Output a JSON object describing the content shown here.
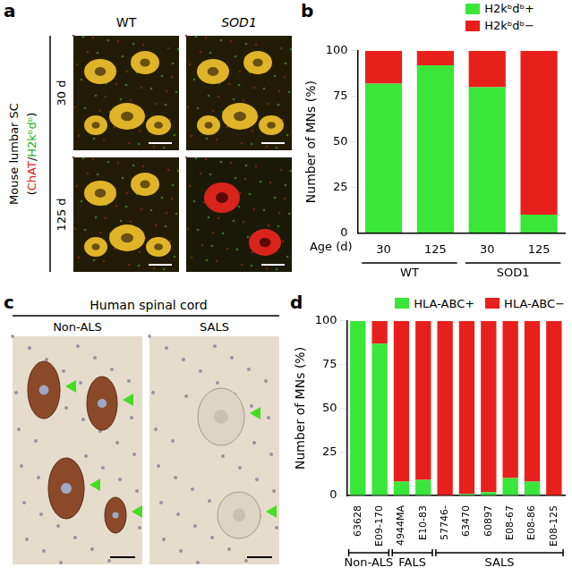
{
  "panel_a": {
    "panel_label": "a",
    "column_headers": [
      "WT",
      "SOD1"
    ],
    "row_headers": [
      "30 d",
      "125 d"
    ],
    "side_label": "Mouse lumbar SC",
    "stain_label_parts": [
      {
        "text": "(",
        "color": "#000000"
      },
      {
        "text": "ChAT",
        "color": "#e8201c"
      },
      {
        "text": "/",
        "color": "#000000"
      },
      {
        "text": "H2kᵇdᵇ",
        "color": "#22b022"
      },
      {
        "text": ")",
        "color": "#000000"
      }
    ]
  },
  "panel_c": {
    "panel_label": "c",
    "title": "Human spinal cord",
    "column_headers": [
      "Non-ALS",
      "SALS"
    ]
  },
  "chart_data": [
    {
      "panel_label": "b",
      "type": "bar",
      "stacked": true,
      "categories": [
        "30",
        "125",
        "30",
        "125"
      ],
      "group_labels": [
        "WT",
        "WT",
        "SOD1",
        "SOD1"
      ],
      "x_label": "Age (d)",
      "y_label": "Number of MNs (%)",
      "ylim": [
        0,
        100
      ],
      "yticks": [
        0,
        25,
        50,
        75,
        100
      ],
      "grid": false,
      "legend": "top-right",
      "series": [
        {
          "name": "H2kᵇdᵇ+",
          "color": "#39e639",
          "values": [
            82,
            92,
            80,
            10
          ]
        },
        {
          "name": "H2kᵇdᵇ−",
          "color": "#e8201c",
          "values": [
            18,
            8,
            20,
            90
          ]
        }
      ]
    },
    {
      "panel_label": "d",
      "type": "bar",
      "stacked": true,
      "categories": [
        "63628",
        "E09-170",
        "4944MA",
        "E10-83",
        "57746-",
        "63470",
        "60897",
        "E08-67",
        "E08-86",
        "E08-125"
      ],
      "group_labels": [
        "Non-ALS",
        "Non-ALS",
        "FALS",
        "FALS",
        "SALS",
        "SALS",
        "SALS",
        "SALS",
        "SALS",
        "SALS"
      ],
      "y_label": "Number of MNs (%)",
      "ylim": [
        0,
        100
      ],
      "yticks": [
        0,
        25,
        50,
        75,
        100
      ],
      "grid": false,
      "legend": "top-right",
      "series": [
        {
          "name": "HLA-ABC+",
          "color": "#39e639",
          "values": [
            100,
            87,
            8,
            9,
            0,
            1,
            2,
            10,
            8,
            0
          ]
        },
        {
          "name": "HLA-ABC−",
          "color": "#e8201c",
          "values": [
            0,
            13,
            92,
            91,
            100,
            99,
            98,
            90,
            92,
            100
          ]
        }
      ]
    }
  ]
}
